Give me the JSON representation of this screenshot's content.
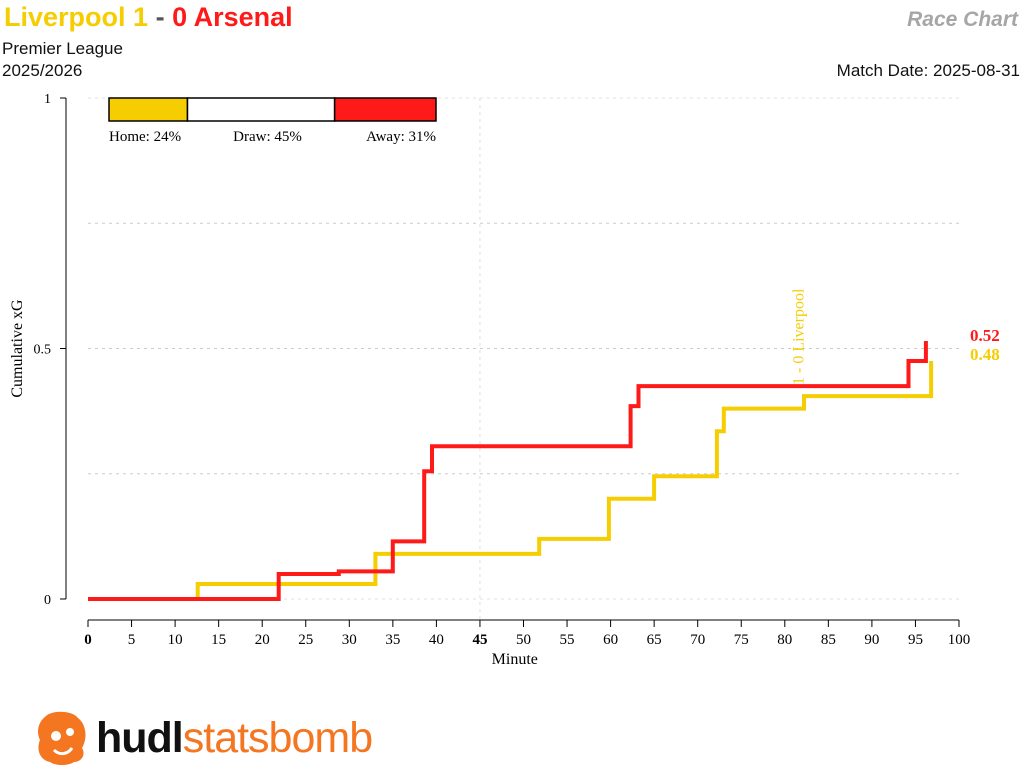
{
  "header": {
    "home_team": "Liverpool",
    "home_score": "1",
    "separator": " - ",
    "away_score": "0",
    "away_team": "Arsenal",
    "competition": "Premier League",
    "season": "2025/2026",
    "chart_label": "Race Chart",
    "match_date": "Match Date: 2025-08-31"
  },
  "colors": {
    "home": "#f5cd00",
    "away": "#ff1a1a",
    "grid": "#cccccc",
    "logo": "#f47621"
  },
  "probabilities": {
    "home": {
      "label": "Home: 24%",
      "value": 0.24
    },
    "draw": {
      "label": "Draw: 45%",
      "value": 0.45
    },
    "away": {
      "label": "Away: 31%",
      "value": 0.31
    }
  },
  "chart_data": {
    "type": "line",
    "step": true,
    "xlabel": "Minute",
    "ylabel": "Cumulative xG",
    "xlim": [
      0,
      100
    ],
    "ylim": [
      0,
      1
    ],
    "x_ticks": [
      "0",
      "5",
      "10",
      "15",
      "20",
      "25",
      "30",
      "35",
      "40",
      "45",
      "50",
      "55",
      "60",
      "65",
      "70",
      "75",
      "80",
      "85",
      "90",
      "95",
      "100"
    ],
    "y_ticks": [
      "0",
      "0.5",
      "1"
    ],
    "grid": true,
    "series": [
      {
        "name": "Liverpool",
        "side": "home",
        "final_label": "0.48",
        "points": [
          [
            0,
            0
          ],
          [
            12.6,
            0
          ],
          [
            12.6,
            0.03
          ],
          [
            33,
            0.03
          ],
          [
            33,
            0.09
          ],
          [
            51.8,
            0.09
          ],
          [
            51.8,
            0.12
          ],
          [
            59.8,
            0.12
          ],
          [
            59.8,
            0.2
          ],
          [
            65,
            0.2
          ],
          [
            65,
            0.245
          ],
          [
            72.2,
            0.245
          ],
          [
            72.2,
            0.335
          ],
          [
            73,
            0.335
          ],
          [
            73,
            0.38
          ],
          [
            82.2,
            0.38
          ],
          [
            82.2,
            0.405
          ],
          [
            96.8,
            0.405
          ],
          [
            96.8,
            0.475
          ]
        ]
      },
      {
        "name": "Arsenal",
        "side": "away",
        "final_label": "0.52",
        "points": [
          [
            0,
            0
          ],
          [
            21.9,
            0
          ],
          [
            21.9,
            0.05
          ],
          [
            28.8,
            0.05
          ],
          [
            28.8,
            0.055
          ],
          [
            35,
            0.055
          ],
          [
            35,
            0.115
          ],
          [
            38.6,
            0.115
          ],
          [
            38.6,
            0.255
          ],
          [
            39.5,
            0.255
          ],
          [
            39.5,
            0.305
          ],
          [
            62.3,
            0.305
          ],
          [
            62.3,
            0.385
          ],
          [
            63.2,
            0.385
          ],
          [
            63.2,
            0.425
          ],
          [
            94.2,
            0.425
          ],
          [
            94.2,
            0.475
          ],
          [
            96.2,
            0.475
          ],
          [
            96.2,
            0.515
          ]
        ]
      }
    ],
    "annotations": [
      {
        "text": "1 - 0 Liverpool",
        "x": 81,
        "side": "home"
      }
    ]
  },
  "logo": {
    "name_bold": "hudl",
    "name_light": "statsbomb"
  }
}
